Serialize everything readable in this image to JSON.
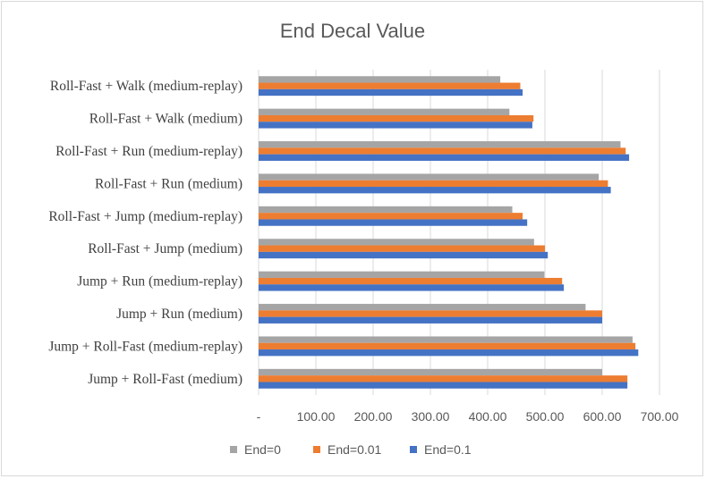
{
  "chart_data": {
    "type": "bar",
    "orientation": "horizontal",
    "title": "End Decal Value",
    "categories": [
      "Roll-Fast + Walk (medium-replay)",
      "Roll-Fast + Walk (medium)",
      "Roll-Fast + Run (medium-replay)",
      "Roll-Fast + Run (medium)",
      "Roll-Fast + Jump (medium-replay)",
      "Roll-Fast + Jump (medium)",
      "Jump + Run (medium-replay)",
      "Jump + Run (medium)",
      "Jump + Roll-Fast (medium-replay)",
      "Jump + Roll-Fast (medium)"
    ],
    "series": [
      {
        "name": "End=0",
        "color": "#a5a5a5",
        "values": [
          422,
          438,
          632,
          594,
          443,
          481,
          499,
          571,
          653,
          600
        ]
      },
      {
        "name": "End=0.01",
        "color": "#ed7d31",
        "values": [
          457,
          480,
          641,
          610,
          461,
          500,
          530,
          600,
          658,
          644
        ]
      },
      {
        "name": "End=0.1",
        "color": "#4472c4",
        "values": [
          461,
          478,
          647,
          615,
          469,
          505,
          533,
          600,
          663,
          644
        ]
      }
    ],
    "xlim": [
      0,
      700
    ],
    "x_ticks": [
      0,
      100,
      200,
      300,
      400,
      500,
      600,
      700
    ],
    "x_tick_labels": [
      "-",
      "100.00",
      "200.00",
      "300.00",
      "400.00",
      "500.00",
      "600.00",
      "700.00"
    ],
    "grid": true,
    "legend_position": "bottom"
  }
}
